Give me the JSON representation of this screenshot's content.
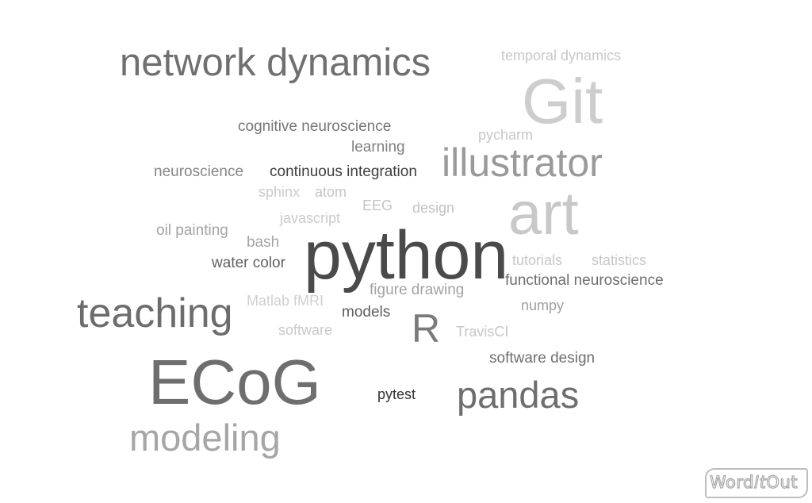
{
  "words": [
    {
      "text": "network dynamics",
      "color": "#707070"
    },
    {
      "text": "temporal dynamics",
      "color": "#c9c9c9"
    },
    {
      "text": "Git",
      "color": "#cdcdcd"
    },
    {
      "text": "cognitive neuroscience",
      "color": "#767676"
    },
    {
      "text": "pycharm",
      "color": "#c7c7c7"
    },
    {
      "text": "learning",
      "color": "#808080"
    },
    {
      "text": "illustrator",
      "color": "#9a9a9a"
    },
    {
      "text": "neuroscience",
      "color": "#868686"
    },
    {
      "text": "continuous integration",
      "color": "#3e3e3e"
    },
    {
      "text": "sphinx",
      "color": "#cbcbcb"
    },
    {
      "text": "atom",
      "color": "#c6c6c6"
    },
    {
      "text": "art",
      "color": "#c8c8c8"
    },
    {
      "text": "EEG",
      "color": "#c3c3c3"
    },
    {
      "text": "design",
      "color": "#c3c3c3"
    },
    {
      "text": "javascript",
      "color": "#cacaca"
    },
    {
      "text": "oil painting",
      "color": "#a3a3a3"
    },
    {
      "text": "bash",
      "color": "#a5a5a5"
    },
    {
      "text": "python",
      "color": "#4a4a4a"
    },
    {
      "text": "water color",
      "color": "#616161"
    },
    {
      "text": "tutorials",
      "color": "#c7c7c7"
    },
    {
      "text": "statistics",
      "color": "#c7c7c7"
    },
    {
      "text": "functional neuroscience",
      "color": "#6e6e6e"
    },
    {
      "text": "figure drawing",
      "color": "#a3a3a3"
    },
    {
      "text": "teaching",
      "color": "#6c6c6c"
    },
    {
      "text": "Matlab fMRI",
      "color": "#cfcfcf"
    },
    {
      "text": "numpy",
      "color": "#a0a0a0"
    },
    {
      "text": "models",
      "color": "#5e5e5e"
    },
    {
      "text": "R",
      "color": "#7a7a7a"
    },
    {
      "text": "software",
      "color": "#c9c9c9"
    },
    {
      "text": "TravisCI",
      "color": "#c6c6c6"
    },
    {
      "text": "software design",
      "color": "#6f6f6f"
    },
    {
      "text": "ECoG",
      "color": "#6e6e6e"
    },
    {
      "text": "pytest",
      "color": "#333333"
    },
    {
      "text": "pandas",
      "color": "#6e6e6e"
    },
    {
      "text": "modeling",
      "color": "#a6a6a6"
    }
  ],
  "logo": {
    "part1": "Word",
    "part2": "It",
    "part3": "Out"
  }
}
